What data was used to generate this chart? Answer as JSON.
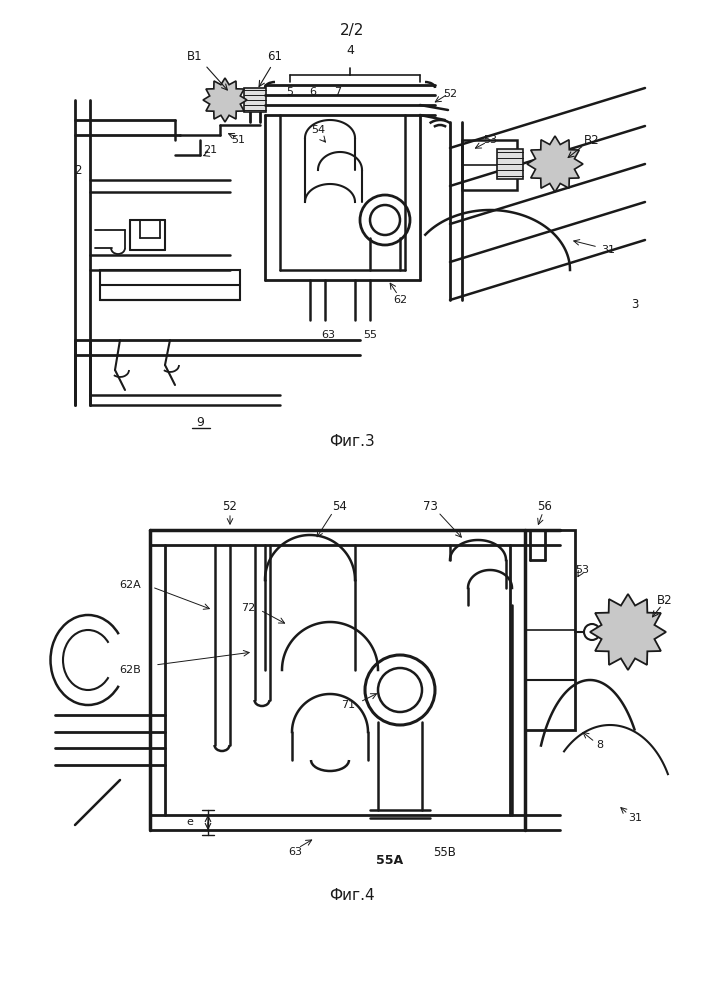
{
  "page_label": "2/2",
  "fig3_label": "Фиг.3",
  "fig4_label": "Фиг.4",
  "background_color": "#ffffff",
  "line_color": "#1a1a1a"
}
